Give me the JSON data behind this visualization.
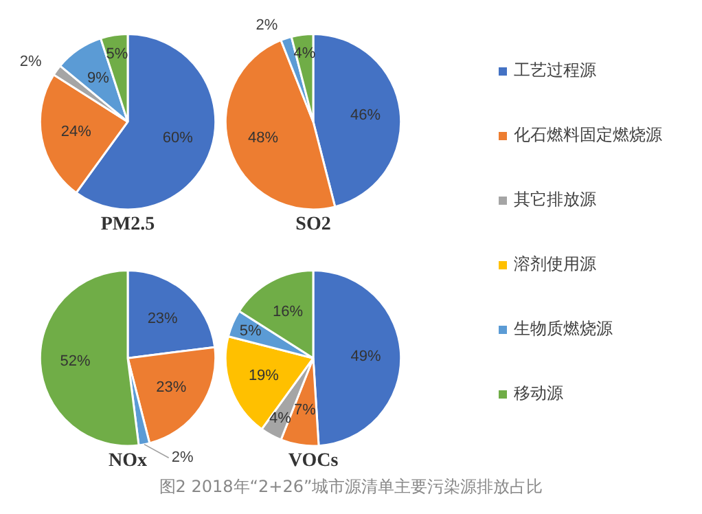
{
  "chart_data": [
    {
      "type": "pie",
      "title": "PM2.5",
      "categories": [
        "工艺过程源",
        "化石燃料固定燃烧源",
        "其它排放源",
        "溶剂使用源",
        "生物质燃烧源",
        "移动源"
      ],
      "values": [
        60,
        24,
        2,
        0,
        9,
        5
      ],
      "value_labels": [
        "60%",
        "24%",
        "2%",
        null,
        "9%",
        "5%"
      ],
      "colors": [
        "#4472c4",
        "#ed7d31",
        "#a5a5a5",
        "#ffc000",
        "#5b9bd5",
        "#70ad47"
      ],
      "legend": "right"
    },
    {
      "type": "pie",
      "title": "SO2",
      "categories": [
        null,
        null,
        null,
        null,
        null,
        null
      ],
      "values": [
        46,
        48,
        0,
        0,
        2,
        4
      ],
      "value_labels": [
        "46%",
        "48%",
        null,
        null,
        "2%",
        "4%"
      ],
      "colors": [
        "#4472c4",
        "#ed7d31",
        "#a5a5a5",
        "#ffc000",
        "#5b9bd5",
        "#70ad47"
      ]
    },
    {
      "type": "pie",
      "title": "NOx",
      "categories": [
        null,
        null,
        null,
        null,
        null,
        null
      ],
      "values": [
        23,
        23,
        0,
        0,
        2,
        52
      ],
      "value_labels": [
        "23%",
        "23%",
        null,
        null,
        "2%",
        "52%"
      ],
      "colors": [
        "#4472c4",
        "#ed7d31",
        "#a5a5a5",
        "#ffc000",
        "#5b9bd5",
        "#70ad47"
      ]
    },
    {
      "type": "pie",
      "title": "VOCs",
      "categories": [
        null,
        null,
        null,
        null,
        null,
        null
      ],
      "values": [
        49,
        7,
        4,
        19,
        5,
        16
      ],
      "value_labels": [
        "49%",
        "7%",
        "4%",
        "19%",
        "5%",
        "16%"
      ],
      "colors": [
        "#4472c4",
        "#ed7d31",
        "#a5a5a5",
        "#ffc000",
        "#5b9bd5",
        "#70ad47"
      ],
      "annotations": [
        "图2 2018年“2+26”城市源清单主要污染源排放占比"
      ]
    }
  ]
}
